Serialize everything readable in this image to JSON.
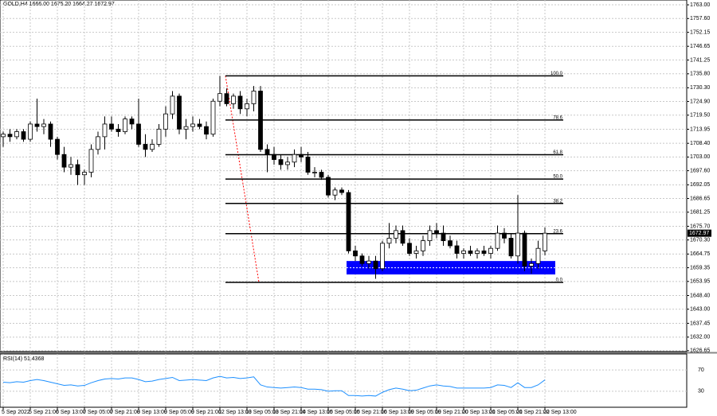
{
  "chart_data": {
    "type": "candlestick",
    "header": "GOLD,H4 1666.00 1675.20 1664.27 1672.97",
    "categories": [
      "5 Sep 2022",
      null,
      null,
      null,
      "5 Sep 21:00",
      null,
      null,
      null,
      "6 Sep 13:00",
      null,
      null,
      null,
      "7 Sep 05:00",
      null,
      null,
      null,
      "7 Sep 21:00",
      null,
      null,
      null,
      "8 Sep 13:00",
      null,
      null,
      null,
      "9 Sep 05:00",
      null,
      null,
      null,
      "9 Sep 21:00",
      null,
      null,
      null,
      "12 Sep 13:00",
      null,
      null,
      null,
      "13 Sep 05:00",
      null,
      null,
      null,
      "13 Sep 21:00",
      null,
      null,
      null,
      "14 Sep 13:00",
      null,
      null,
      null,
      "15 Sep 05:00",
      null,
      null,
      null,
      "15 Sep 21:00",
      null,
      null,
      null,
      "16 Sep 13:00",
      null,
      null,
      null,
      "19 Sep 05:00",
      null,
      null,
      null,
      "19 Sep 21:00",
      null,
      null,
      null,
      "20 Sep 13:00",
      null,
      null,
      null,
      "21 Sep 05:00",
      null,
      null,
      null,
      "21 Sep 21:00",
      null,
      null,
      null,
      "22 Sep 13:00"
    ],
    "open": [
      1711,
      1712,
      1711,
      1713,
      1710,
      1716,
      1715,
      1716,
      1710,
      1704,
      1699,
      1700,
      1696,
      1697,
      1706,
      1711,
      1716,
      1714,
      1713,
      1718,
      1716,
      1708,
      1706,
      1708,
      1714,
      1720,
      1727,
      1714,
      1715,
      1716,
      1715,
      1712,
      1725,
      1728,
      1724,
      1727,
      1722,
      1724,
      1729,
      1706,
      1704,
      1702,
      1700,
      1701,
      1704,
      1703,
      1697,
      1697,
      1695,
      1688,
      1690,
      1689,
      1666,
      1664,
      1661,
      1662,
      1659,
      1669,
      1671,
      1674,
      1669,
      1665,
      1666,
      1670,
      1674,
      1673,
      1670,
      1668,
      1665,
      1666,
      1665,
      1666,
      1665,
      1667,
      1673,
      1671,
      1664,
      1673,
      1660,
      1661,
      1666.0
    ],
    "high": [
      1713,
      1714,
      1714,
      1714,
      1717,
      1726,
      1718,
      1717,
      1711,
      1707,
      1703,
      1702,
      1698,
      1708,
      1713,
      1719,
      1719,
      1716,
      1719,
      1719,
      1726,
      1712,
      1710,
      1716,
      1723,
      1729,
      1728,
      1718,
      1719,
      1718,
      1717,
      1726,
      1735,
      1730,
      1728,
      1729,
      1726,
      1731,
      1731,
      1708,
      1707,
      1704,
      1703,
      1706,
      1707,
      1705,
      1699,
      1698,
      1696,
      1691,
      1691,
      1690,
      1668,
      1665,
      1664,
      1664,
      1670,
      1677,
      1676,
      1676,
      1671,
      1668,
      1672,
      1676,
      1677,
      1676,
      1672,
      1670,
      1667,
      1668,
      1667,
      1668,
      1668,
      1676,
      1675,
      1673,
      1688,
      1674,
      1663,
      1670,
      1675.2
    ],
    "low": [
      1707,
      1709,
      1710,
      1709,
      1709,
      1713,
      1712,
      1707,
      1702,
      1697,
      1696,
      1692,
      1692,
      1695,
      1704,
      1706,
      1713,
      1711,
      1712,
      1714,
      1707,
      1703,
      1705,
      1707,
      1711,
      1718,
      1712,
      1710,
      1713,
      1714,
      1710,
      1711,
      1723,
      1723,
      1722,
      1720,
      1719,
      1721,
      1705,
      1697,
      1700,
      1698,
      1698,
      1699,
      1701,
      1696,
      1695,
      1694,
      1687,
      1686,
      1688,
      1665,
      1662,
      1660,
      1659,
      1655,
      1658,
      1667,
      1669,
      1668,
      1664,
      1663,
      1664,
      1668,
      1671,
      1668,
      1667,
      1663,
      1663,
      1664,
      1663,
      1664,
      1663,
      1666,
      1669,
      1663,
      1661,
      1658,
      1657,
      1659,
      1664.27
    ],
    "close": [
      1712,
      1711,
      1713,
      1710,
      1716,
      1715,
      1716,
      1710,
      1704,
      1699,
      1700,
      1696,
      1697,
      1706,
      1711,
      1716,
      1714,
      1713,
      1718,
      1716,
      1708,
      1706,
      1708,
      1714,
      1720,
      1727,
      1714,
      1715,
      1716,
      1715,
      1712,
      1725,
      1728,
      1724,
      1727,
      1722,
      1724,
      1729,
      1706,
      1704,
      1702,
      1700,
      1701,
      1704,
      1703,
      1697,
      1697,
      1695,
      1688,
      1690,
      1689,
      1666,
      1664,
      1661,
      1662,
      1659,
      1669,
      1671,
      1674,
      1669,
      1665,
      1666,
      1670,
      1674,
      1673,
      1670,
      1668,
      1665,
      1666,
      1665,
      1666,
      1665,
      1667,
      1673,
      1671,
      1664,
      1673,
      1660,
      1661,
      1667,
      1672.97
    ],
    "bull_color": "#ffffff",
    "bear_color": "#000000",
    "ylim": [
      1626.3,
      1764.9
    ],
    "yticks": [
      {
        "value": 1763,
        "label": "1763.00"
      },
      {
        "value": 1757.6,
        "label": "1757.60"
      },
      {
        "value": 1752.15,
        "label": "1752.15"
      },
      {
        "value": 1746.65,
        "label": "1746.65"
      },
      {
        "value": 1741.25,
        "label": "1741.25"
      },
      {
        "value": 1735.8,
        "label": "1735.80"
      },
      {
        "value": 1730.3,
        "label": "1730.30"
      },
      {
        "value": 1724.9,
        "label": "1724.90"
      },
      {
        "value": 1719.5,
        "label": "1719.50"
      },
      1713.95,
      {
        "value": 1708.4,
        "label": "1708.40"
      },
      {
        "value": 1703,
        "label": "1703.00"
      },
      {
        "value": 1697.6,
        "label": "1697.60"
      },
      1692.05,
      1686.65,
      1681.25,
      {
        "value": 1675.7,
        "label": "1675.70"
      },
      {
        "value": 1670.3,
        "label": "1670.30"
      },
      1664.75,
      1659.35,
      1653.95,
      {
        "value": 1648.4,
        "label": "1648.40"
      },
      {
        "value": 1643,
        "label": "1643.00"
      },
      1637.45,
      {
        "value": 1632,
        "label": "1632.00"
      },
      1626.65
    ],
    "grid": true,
    "current_price": 1672.97,
    "fibo": {
      "color": "#000000",
      "trend_color": "#ff0000",
      "levels": [
        {
          "label": "100.0",
          "value": 1735
        },
        {
          "label": "78.6",
          "value": 1717.6
        },
        {
          "label": "61.8",
          "value": 1703.9
        },
        {
          "label": "50.0",
          "value": 1694.3
        },
        {
          "label": "38.2",
          "value": 1684.7
        },
        {
          "label": "23.6",
          "value": 1672.8
        },
        {
          "label": "0.0",
          "value": 1653.6
        }
      ]
    },
    "zone": {
      "top": 1662,
      "bottom": 1656.7,
      "color": "#0000ff"
    },
    "indicator": {
      "title": "RSI(14) 51.4368",
      "color": "#1e90ff",
      "ylim": [
        0,
        100
      ],
      "yticks": [
        70,
        30
      ],
      "values": [
        47,
        46,
        48,
        47,
        50,
        52,
        50,
        47,
        44,
        41,
        42,
        40,
        41,
        46,
        50,
        53,
        54,
        53,
        55,
        55,
        52,
        48,
        49,
        52,
        54,
        56,
        50,
        51,
        52,
        51,
        50,
        55,
        58,
        55,
        56,
        54,
        55,
        57,
        42,
        38,
        37,
        36,
        37,
        38,
        37,
        34,
        34,
        33,
        30,
        31,
        31,
        22,
        22,
        21,
        22,
        21,
        28,
        33,
        36,
        34,
        31,
        32,
        36,
        40,
        42,
        40,
        39,
        36,
        36,
        36,
        36,
        36,
        37,
        42,
        41,
        37,
        46,
        37,
        37,
        42,
        51.4368
      ]
    }
  }
}
